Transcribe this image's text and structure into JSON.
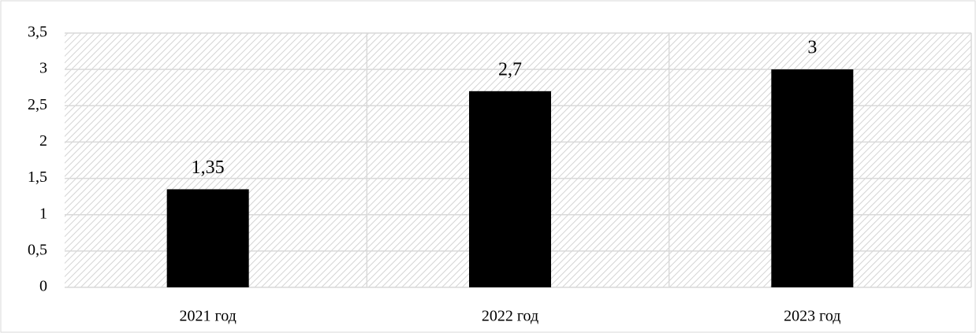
{
  "chart_data": {
    "type": "bar",
    "categories": [
      "2021 год",
      "2022 год",
      "2023 год"
    ],
    "values": [
      1.35,
      2.7,
      3
    ],
    "value_labels": [
      "1,35",
      "2,7",
      "3"
    ],
    "color": "#000000",
    "ylim": [
      0,
      3.5
    ],
    "yticks": [
      0,
      {
        "value": 0.5,
        "label": "0,5"
      },
      1,
      {
        "value": 1.5,
        "label": "1,5"
      },
      2,
      {
        "value": 2.5,
        "label": "2,5"
      },
      3,
      {
        "value": 3.5,
        "label": "3,5"
      }
    ],
    "grid": true
  }
}
